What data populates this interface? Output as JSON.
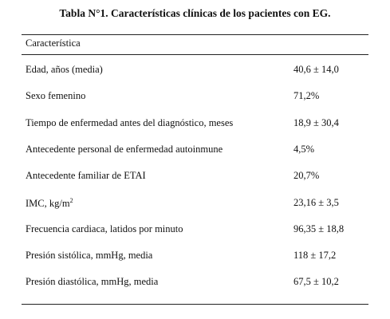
{
  "title": "Tabla N°1. Características clínicas de los pacientes con EG.",
  "table": {
    "header": "Característica",
    "rows": [
      {
        "label": "Edad, años (media)",
        "value": "40,6 ± 14,0"
      },
      {
        "label": "Sexo femenino",
        "value": "71,2%"
      },
      {
        "label": "Tiempo de enfermedad antes del diagnóstico, meses",
        "value": "18,9 ± 30,4"
      },
      {
        "label": "Antecedente personal de enfermedad autoinmune",
        "value": "4,5%"
      },
      {
        "label": "Antecedente familiar de ETAI",
        "value": "20,7%"
      },
      {
        "label": "IMC, kg/m",
        "sup": "2",
        "value": "23,16 ± 3,5"
      },
      {
        "label": "Frecuencia cardiaca, latidos por minuto",
        "value": "96,35 ± 18,8"
      },
      {
        "label": "Presión sistólica, mmHg, media",
        "value": "118 ± 17,2"
      },
      {
        "label": "Presión diastólica, mmHg, media",
        "value": "67,5 ± 10,2"
      }
    ]
  }
}
